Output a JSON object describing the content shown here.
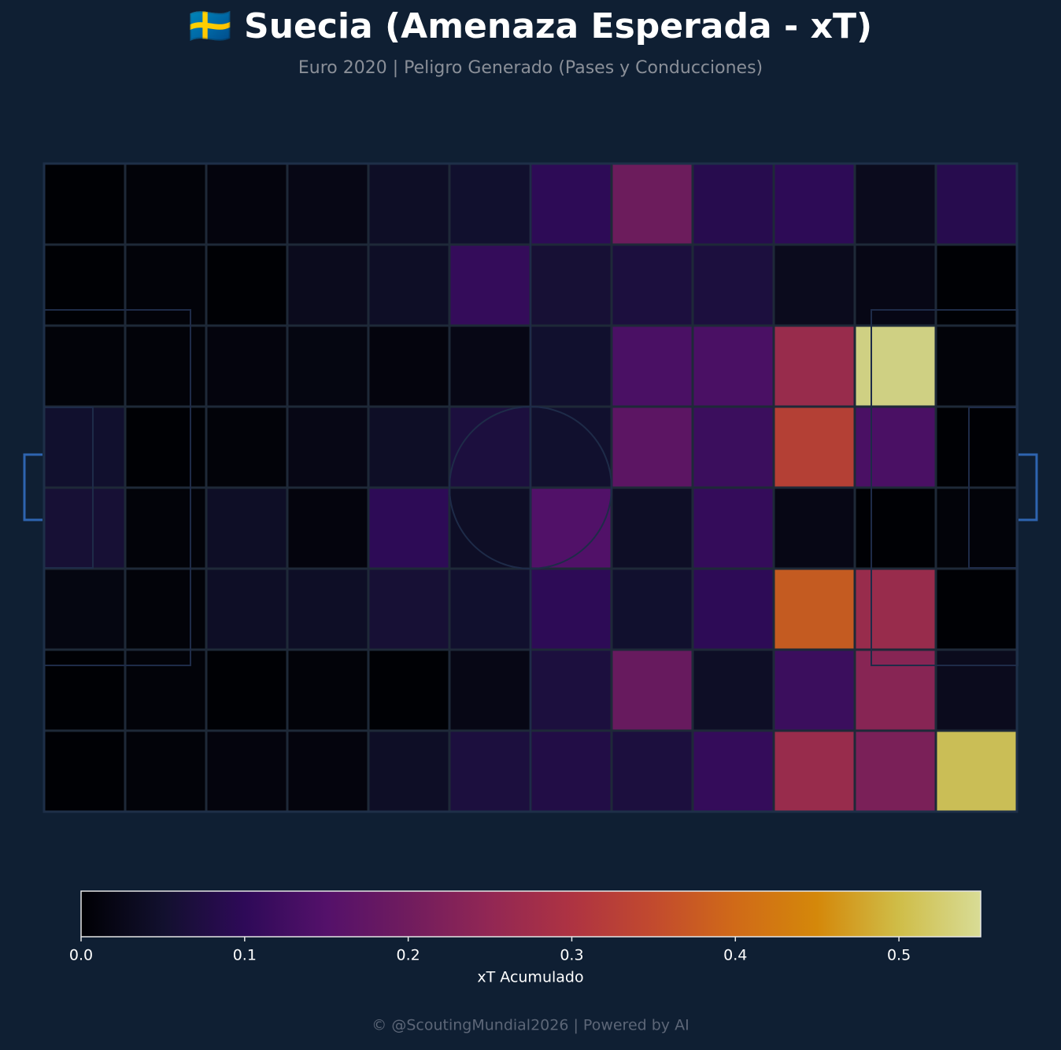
{
  "chart_data": {
    "type": "heatmap",
    "title": "🇸🇪 Suecia (Amenaza Esperada - xT)",
    "subtitle": "Euro 2020 | Peligro Generado (Pases y Conducciones)",
    "matrix": [
      [
        0.0,
        0.005,
        0.01,
        0.02,
        0.04,
        0.05,
        0.1,
        0.2,
        0.09,
        0.1,
        0.03,
        0.09
      ],
      [
        0.0,
        0.005,
        0.0,
        0.03,
        0.04,
        0.11,
        0.06,
        0.07,
        0.07,
        0.03,
        0.02,
        0.0
      ],
      [
        0.005,
        0.005,
        0.01,
        0.015,
        0.01,
        0.02,
        0.05,
        0.14,
        0.14,
        0.27,
        0.54,
        0.005
      ],
      [
        0.05,
        0.0,
        0.005,
        0.02,
        0.04,
        0.07,
        0.05,
        0.17,
        0.12,
        0.33,
        0.14,
        0.0
      ],
      [
        0.06,
        0.005,
        0.04,
        0.01,
        0.1,
        0.04,
        0.15,
        0.04,
        0.11,
        0.02,
        0.0,
        0.005
      ],
      [
        0.015,
        0.005,
        0.04,
        0.04,
        0.06,
        0.05,
        0.1,
        0.05,
        0.1,
        0.38,
        0.27,
        0.0
      ],
      [
        0.0,
        0.005,
        0.0,
        0.005,
        0.0,
        0.02,
        0.07,
        0.19,
        0.04,
        0.12,
        0.24,
        0.03
      ],
      [
        0.0,
        0.005,
        0.01,
        0.01,
        0.04,
        0.07,
        0.08,
        0.07,
        0.11,
        0.27,
        0.22,
        0.51
      ]
    ],
    "colorscale": [
      "#000004",
      "#12102e",
      "#2e0a58",
      "#54116a",
      "#701c5e",
      "#922754",
      "#ae3342",
      "#c24a2e",
      "#d06a18",
      "#d4880a",
      "#cfbd48",
      "#d8dc96"
    ],
    "colorbar_label": "xT Acumulado",
    "clim": [
      0,
      0.55
    ],
    "cticks": [
      {
        "value": 0,
        "label": "0.0"
      },
      0.1,
      0.2,
      0.3,
      0.4,
      0.5
    ],
    "footer": "© @ScoutingMundial2026 | Powered by AI"
  }
}
